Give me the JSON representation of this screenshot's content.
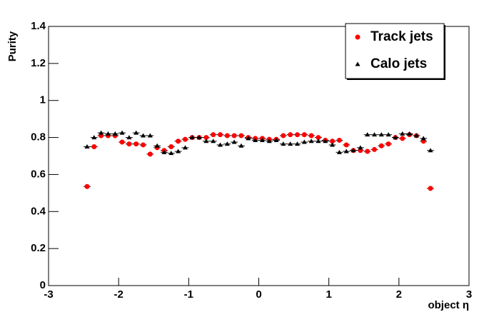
{
  "chart_data": {
    "type": "scatter",
    "y_label": "Purity",
    "x_label": "object η",
    "xlim": [
      -3,
      3
    ],
    "ylim": [
      0,
      1.4
    ],
    "xticks": [
      -3,
      -2,
      -1,
      0,
      1,
      2,
      3
    ],
    "yticks": [
      0,
      0.2,
      0.4,
      0.6,
      0.8,
      1,
      1.2,
      1.4
    ],
    "legend_position": "upper right",
    "x": [
      -2.45,
      -2.35,
      -2.25,
      -2.15,
      -2.05,
      -1.95,
      -1.85,
      -1.75,
      -1.65,
      -1.55,
      -1.45,
      -1.35,
      -1.25,
      -1.15,
      -1.05,
      -0.95,
      -0.85,
      -0.75,
      -0.65,
      -0.55,
      -0.45,
      -0.35,
      -0.25,
      -0.15,
      -0.05,
      0.05,
      0.15,
      0.25,
      0.35,
      0.45,
      0.55,
      0.65,
      0.75,
      0.85,
      0.95,
      1.05,
      1.15,
      1.25,
      1.35,
      1.45,
      1.55,
      1.65,
      1.75,
      1.85,
      1.95,
      2.05,
      2.15,
      2.25,
      2.35,
      2.45
    ],
    "series": [
      {
        "name": "Track jets",
        "color": "#ff0000",
        "marker": "circle",
        "xerr": 0.05,
        "values": [
          0.535,
          0.75,
          0.81,
          0.81,
          0.81,
          0.775,
          0.765,
          0.765,
          0.76,
          0.71,
          0.745,
          0.73,
          0.75,
          0.78,
          0.79,
          0.8,
          0.8,
          0.8,
          0.815,
          0.815,
          0.81,
          0.81,
          0.81,
          0.8,
          0.795,
          0.795,
          0.79,
          0.79,
          0.81,
          0.815,
          0.815,
          0.815,
          0.81,
          0.8,
          0.785,
          0.78,
          0.785,
          0.76,
          0.73,
          0.73,
          0.725,
          0.735,
          0.755,
          0.765,
          0.8,
          0.795,
          0.815,
          0.81,
          0.78,
          0.525
        ]
      },
      {
        "name": "Calo jets",
        "color": "#000000",
        "marker": "triangle",
        "xerr": 0.05,
        "values": [
          0.75,
          0.8,
          0.825,
          0.82,
          0.82,
          0.825,
          0.8,
          0.825,
          0.81,
          0.81,
          0.755,
          0.72,
          0.715,
          0.725,
          0.745,
          0.8,
          0.8,
          0.78,
          0.78,
          0.76,
          0.765,
          0.775,
          0.755,
          0.795,
          0.785,
          0.785,
          0.78,
          0.785,
          0.765,
          0.765,
          0.765,
          0.775,
          0.78,
          0.78,
          0.78,
          0.76,
          0.72,
          0.725,
          0.73,
          0.745,
          0.815,
          0.815,
          0.815,
          0.815,
          0.8,
          0.82,
          0.82,
          0.81,
          0.795,
          0.73
        ]
      }
    ]
  }
}
